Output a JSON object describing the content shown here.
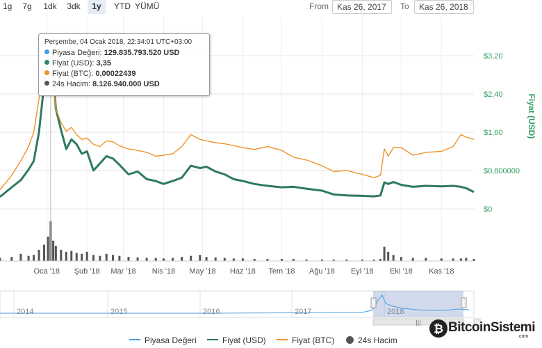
{
  "zoom": {
    "buttons": [
      "1g",
      "7g",
      "1dk",
      "3dk",
      "1y",
      "YTD",
      "YÜMÜ"
    ],
    "active": "1y"
  },
  "range": {
    "from_label": "From",
    "from_value": "Kas 26, 2017",
    "to_label": "To",
    "to_value": "Kas 26, 2018"
  },
  "tooltip": {
    "header": "Perşembe, 04 Ocak 2018, 22:34:01 UTC+03:00",
    "rows": [
      {
        "label": "Piyasa Değeri",
        "value": "129.835.793.520 USD",
        "color": "#4a9ee0"
      },
      {
        "label": "Fiyat (USD)",
        "value": "3,35",
        "color": "#2e8a5e"
      },
      {
        "label": "Fiyat (BTC)",
        "value": "0,00022439",
        "color": "#f0922a"
      },
      {
        "label": "24s Hacim",
        "value": "8.126.940.000 USD",
        "color": "#555555"
      }
    ]
  },
  "legend": [
    {
      "label": "Piyasa Değeri",
      "color": "#4a9ee0",
      "symbol": "line"
    },
    {
      "label": "Fiyat (USD)",
      "color": "#2e7a5e",
      "symbol": "line"
    },
    {
      "label": "Fiyat (BTC)",
      "color": "#f0922a",
      "symbol": "line"
    },
    {
      "label": "24s Hacim",
      "color": "#555555",
      "symbol": "circle"
    }
  ],
  "watermark": {
    "text": "BitcoinSistemi",
    "suffix": ".com"
  },
  "chart_data": {
    "type": "line",
    "y_axis": {
      "title": "Fiyat (USD)",
      "ticks": [
        {
          "value": 0,
          "label": "$0"
        },
        {
          "value": 0.8,
          "label": "$0,800000"
        },
        {
          "value": 1.6,
          "label": "$1,60"
        },
        {
          "value": 2.4,
          "label": "$2,40"
        },
        {
          "value": 3.2,
          "label": "$3,20"
        }
      ],
      "ylim": [
        0,
        3.2
      ]
    },
    "x_ticks": [
      "Oca '18",
      "Şub '18",
      "Mar '18",
      "Nis '18",
      "May '18",
      "Haz '18",
      "Tem '18",
      "Ağu '18",
      "Eyl '18",
      "Eki '18",
      "Kas '18"
    ],
    "navigator_ticks": [
      "2014",
      "2015",
      "2016",
      "2017",
      "2018"
    ],
    "tick_dates": [
      "2018-01-01",
      "2018-02-01",
      "2018-03-01",
      "2018-04-01",
      "2018-05-01",
      "2018-06-01",
      "2018-07-01",
      "2018-08-01",
      "2018-09-01",
      "2018-10-01",
      "2018-11-01"
    ],
    "x": [
      "2017-11-26",
      "2017-12-05",
      "2017-12-12",
      "2017-12-18",
      "2017-12-22",
      "2017-12-26",
      "2017-12-30",
      "2018-01-02",
      "2018-01-04",
      "2018-01-06",
      "2018-01-08",
      "2018-01-12",
      "2018-01-16",
      "2018-01-20",
      "2018-01-24",
      "2018-01-28",
      "2018-02-01",
      "2018-02-06",
      "2018-02-11",
      "2018-02-16",
      "2018-02-21",
      "2018-02-26",
      "2018-03-05",
      "2018-03-12",
      "2018-03-19",
      "2018-03-26",
      "2018-04-01",
      "2018-04-08",
      "2018-04-15",
      "2018-04-22",
      "2018-04-29",
      "2018-05-04",
      "2018-05-11",
      "2018-05-18",
      "2018-05-25",
      "2018-06-01",
      "2018-06-10",
      "2018-06-20",
      "2018-07-01",
      "2018-07-10",
      "2018-07-20",
      "2018-08-01",
      "2018-08-10",
      "2018-08-20",
      "2018-09-01",
      "2018-09-10",
      "2018-09-15",
      "2018-09-18",
      "2018-09-21",
      "2018-09-25",
      "2018-10-01",
      "2018-10-10",
      "2018-10-20",
      "2018-11-01",
      "2018-11-10",
      "2018-11-16",
      "2018-11-20",
      "2018-11-26"
    ],
    "series": [
      {
        "name": "Fiyat (USD)",
        "color": "#2e7a5e",
        "values": [
          0.25,
          0.45,
          0.6,
          0.82,
          1.0,
          1.6,
          2.6,
          3.2,
          3.35,
          2.9,
          2.1,
          1.65,
          1.25,
          1.45,
          1.35,
          1.15,
          1.2,
          0.8,
          0.95,
          1.1,
          1.05,
          0.92,
          0.72,
          0.78,
          0.62,
          0.58,
          0.52,
          0.58,
          0.65,
          0.9,
          0.85,
          0.88,
          0.78,
          0.72,
          0.62,
          0.58,
          0.52,
          0.48,
          0.45,
          0.46,
          0.42,
          0.38,
          0.3,
          0.28,
          0.27,
          0.26,
          0.28,
          0.55,
          0.52,
          0.56,
          0.5,
          0.46,
          0.48,
          0.47,
          0.48,
          0.46,
          0.43,
          0.35
        ]
      },
      {
        "name": "Fiyat (BTC)",
        "values": [
          0.4,
          0.7,
          1.0,
          1.3,
          1.6,
          2.3,
          3.0,
          3.2,
          3.3,
          2.7,
          2.1,
          1.8,
          1.62,
          1.7,
          1.55,
          1.45,
          1.48,
          1.35,
          1.3,
          1.42,
          1.4,
          1.32,
          1.25,
          1.22,
          1.18,
          1.1,
          1.12,
          1.15,
          1.3,
          1.55,
          1.45,
          1.42,
          1.38,
          1.36,
          1.32,
          1.28,
          1.24,
          1.3,
          1.22,
          1.08,
          1.02,
          0.9,
          0.78,
          0.8,
          0.72,
          0.65,
          0.7,
          1.25,
          1.1,
          1.28,
          1.28,
          1.12,
          1.18,
          1.2,
          1.3,
          1.55,
          1.5,
          1.45
        ],
        "color": "#f0922a"
      }
    ],
    "volume": [
      6,
      8,
      14,
      10,
      12,
      22,
      32,
      48,
      78,
      40,
      30,
      22,
      18,
      20,
      16,
      14,
      18,
      12,
      10,
      14,
      12,
      10,
      8,
      7,
      6,
      6,
      5,
      6,
      8,
      10,
      12,
      8,
      7,
      6,
      5,
      5,
      4,
      4,
      4,
      4,
      3,
      3,
      3,
      3,
      3,
      3,
      4,
      28,
      18,
      12,
      8,
      6,
      6,
      5,
      5,
      5,
      6,
      4
    ]
  }
}
